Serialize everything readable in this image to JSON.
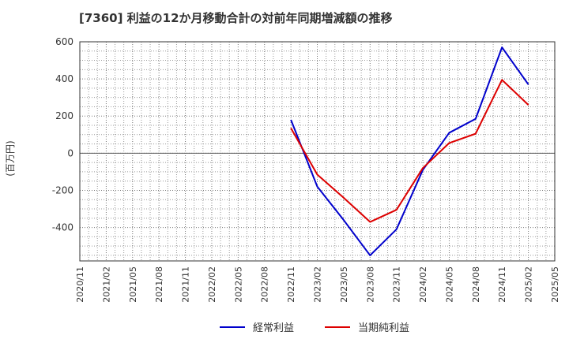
{
  "chart_data": {
    "type": "line",
    "title": "[7360]  利益の12か月移動合計の対前年同期増減額の推移",
    "ylabel": "(百万円)",
    "xlabel": "",
    "ylim": [
      -580,
      600
    ],
    "yticks": [
      600,
      400,
      200,
      0,
      -200,
      -400
    ],
    "ytick_labels": [
      "600",
      "400",
      "200",
      "0",
      "-200",
      "-400"
    ],
    "categories": [
      "2020/11",
      "2021/02",
      "2021/05",
      "2021/08",
      "2021/11",
      "2022/02",
      "2022/05",
      "2022/08",
      "2022/11",
      "2023/02",
      "2023/05",
      "2023/08",
      "2023/11",
      "2024/02",
      "2024/05",
      "2024/08",
      "2024/11",
      "2025/02",
      "2025/05"
    ],
    "grid": true,
    "legend_position": "bottom-center",
    "series": [
      {
        "name": "経常利益",
        "color": "#0000cc",
        "values": [
          null,
          null,
          null,
          null,
          null,
          null,
          null,
          null,
          180,
          -180,
          -360,
          -550,
          -410,
          -90,
          110,
          185,
          570,
          370,
          null
        ]
      },
      {
        "name": "当期純利益",
        "color": "#dd0000",
        "values": [
          null,
          null,
          null,
          null,
          null,
          null,
          null,
          null,
          135,
          -115,
          -240,
          -370,
          -305,
          -80,
          55,
          105,
          395,
          260,
          null
        ]
      }
    ]
  }
}
